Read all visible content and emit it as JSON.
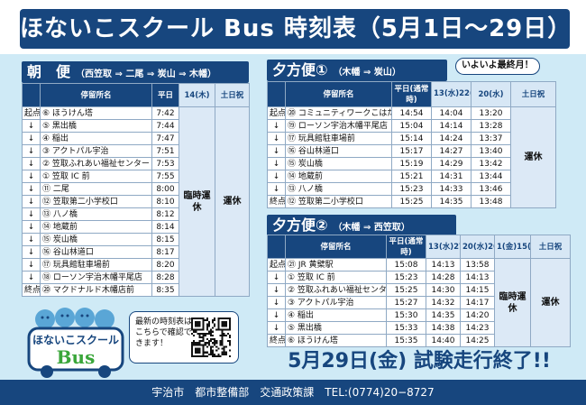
{
  "title": "ほないこスクール Bus 時刻表（5月1日〜29日）",
  "morning": {
    "heading": "朝　便",
    "route": "（西笠取 ⇒ 二尾 ⇒ 炭山 ⇒ 木幡）",
    "headers": [
      "停留所名",
      "平日",
      "14(木)",
      "土日祝"
    ],
    "merged_a": "臨時運休",
    "merged_b": "運休",
    "rows": [
      {
        "k": "起点",
        "stop": "⑥ ほうけん塔",
        "t": "7:42"
      },
      {
        "k": "↓",
        "stop": "⑤ 黒出橋",
        "t": "7:44"
      },
      {
        "k": "↓",
        "stop": "④ 稲出",
        "t": "7:47"
      },
      {
        "k": "↓",
        "stop": "③ アクトパル宇治",
        "t": "7:51"
      },
      {
        "k": "↓",
        "stop": "② 笠取ふれあい福祉センター",
        "t": "7:53"
      },
      {
        "k": "↓",
        "stop": "① 笠取 IC 前",
        "t": "7:55"
      },
      {
        "k": "↓",
        "stop": "⑪ 二尾",
        "t": "8:00"
      },
      {
        "k": "↓",
        "stop": "⑫ 笠取第二小学校口",
        "t": "8:10"
      },
      {
        "k": "↓",
        "stop": "⑬ 八ノ橋",
        "t": "8:12"
      },
      {
        "k": "↓",
        "stop": "⑭ 地蔵前",
        "t": "8:14"
      },
      {
        "k": "↓",
        "stop": "⑮ 炭山橋",
        "t": "8:15"
      },
      {
        "k": "↓",
        "stop": "⑯ 谷山林道口",
        "t": "8:17"
      },
      {
        "k": "↓",
        "stop": "⑰ 玩具館駐車場前",
        "t": "8:20"
      },
      {
        "k": "↓",
        "stop": "⑱ ローソン宇治木幡平尾店",
        "t": "8:28"
      },
      {
        "k": "終点",
        "stop": "⑳ マクドナルド木幡店前",
        "t": "8:35"
      }
    ]
  },
  "evening1": {
    "heading": "夕方便①",
    "route": "（木幡 ⇒ 炭山）",
    "badge": "いよいよ最終月！",
    "headers": [
      "停留所名",
      "平日(通常時)",
      "13(水)22(金)27(水)",
      "20(水)",
      "土日祝"
    ],
    "merged": "運休",
    "rows": [
      {
        "k": "起点",
        "stop": "⑳ コミュニティワークこはた館前",
        "t1": "14:54",
        "t2": "14:04",
        "t3": "13:20"
      },
      {
        "k": "↓",
        "stop": "⑲ ローソン宇治木幡平尾店",
        "t1": "15:04",
        "t2": "14:14",
        "t3": "13:28"
      },
      {
        "k": "↓",
        "stop": "⑰ 玩具館駐車場前",
        "t1": "15:14",
        "t2": "14:24",
        "t3": "13:37"
      },
      {
        "k": "↓",
        "stop": "⑯ 谷山林道口",
        "t1": "15:17",
        "t2": "14:27",
        "t3": "13:40"
      },
      {
        "k": "↓",
        "stop": "⑮ 炭山橋",
        "t1": "15:19",
        "t2": "14:29",
        "t3": "13:42"
      },
      {
        "k": "↓",
        "stop": "⑭ 地蔵前",
        "t1": "15:21",
        "t2": "14:31",
        "t3": "13:44"
      },
      {
        "k": "↓",
        "stop": "⑬ 八ノ橋",
        "t1": "15:23",
        "t2": "14:33",
        "t3": "13:46"
      },
      {
        "k": "終点",
        "stop": "⑫ 笠取第二小学校口",
        "t1": "15:25",
        "t2": "14:35",
        "t3": "13:48"
      }
    ]
  },
  "evening2": {
    "heading": "夕方便②",
    "route": "（木幡 ⇒ 西笠取）",
    "headers": [
      "停留所名",
      "平日(通常時)",
      "13(水)27(水)",
      "20(水)26(火)",
      "1(金)15(金)",
      "土日祝"
    ],
    "merged_a": "臨時運休",
    "merged_b": "運休",
    "rows": [
      {
        "k": "起点",
        "stop": "㉑ JR 黄檗駅",
        "t1": "15:08",
        "t2": "14:13",
        "t3": "13:58"
      },
      {
        "k": "↓",
        "stop": "① 笠取 IC 前",
        "t1": "15:23",
        "t2": "14:28",
        "t3": "14:13"
      },
      {
        "k": "↓",
        "stop": "② 笠取ふれあい福祉センター",
        "t1": "15:25",
        "t2": "14:30",
        "t3": "14:15"
      },
      {
        "k": "↓",
        "stop": "③ アクトパル宇治",
        "t1": "15:27",
        "t2": "14:32",
        "t3": "14:17"
      },
      {
        "k": "↓",
        "stop": "④ 稲出",
        "t1": "15:30",
        "t2": "14:35",
        "t3": "14:20"
      },
      {
        "k": "↓",
        "stop": "⑤ 黒出橋",
        "t1": "15:33",
        "t2": "14:38",
        "t3": "14:23"
      },
      {
        "k": "終点",
        "stop": "⑥ ほうけん塔",
        "t1": "15:35",
        "t2": "14:40",
        "t3": "14:25"
      }
    ]
  },
  "mascot": {
    "line1": "ほないこスクール",
    "line2": "Bus"
  },
  "bubble": "最新の時刻表はこちらで確認できます！",
  "end_note": "5月29日(金) 試験走行終了!!",
  "footer": "宇治市　都市整備部　交通政策課　TEL:(0774)20−8727",
  "colors": {
    "primary": "#17467e",
    "background": "#cfeaf6",
    "accent_green": "#3aa63a"
  },
  "icons": [
    "qr-code-icon",
    "bus-mascot-icon"
  ]
}
